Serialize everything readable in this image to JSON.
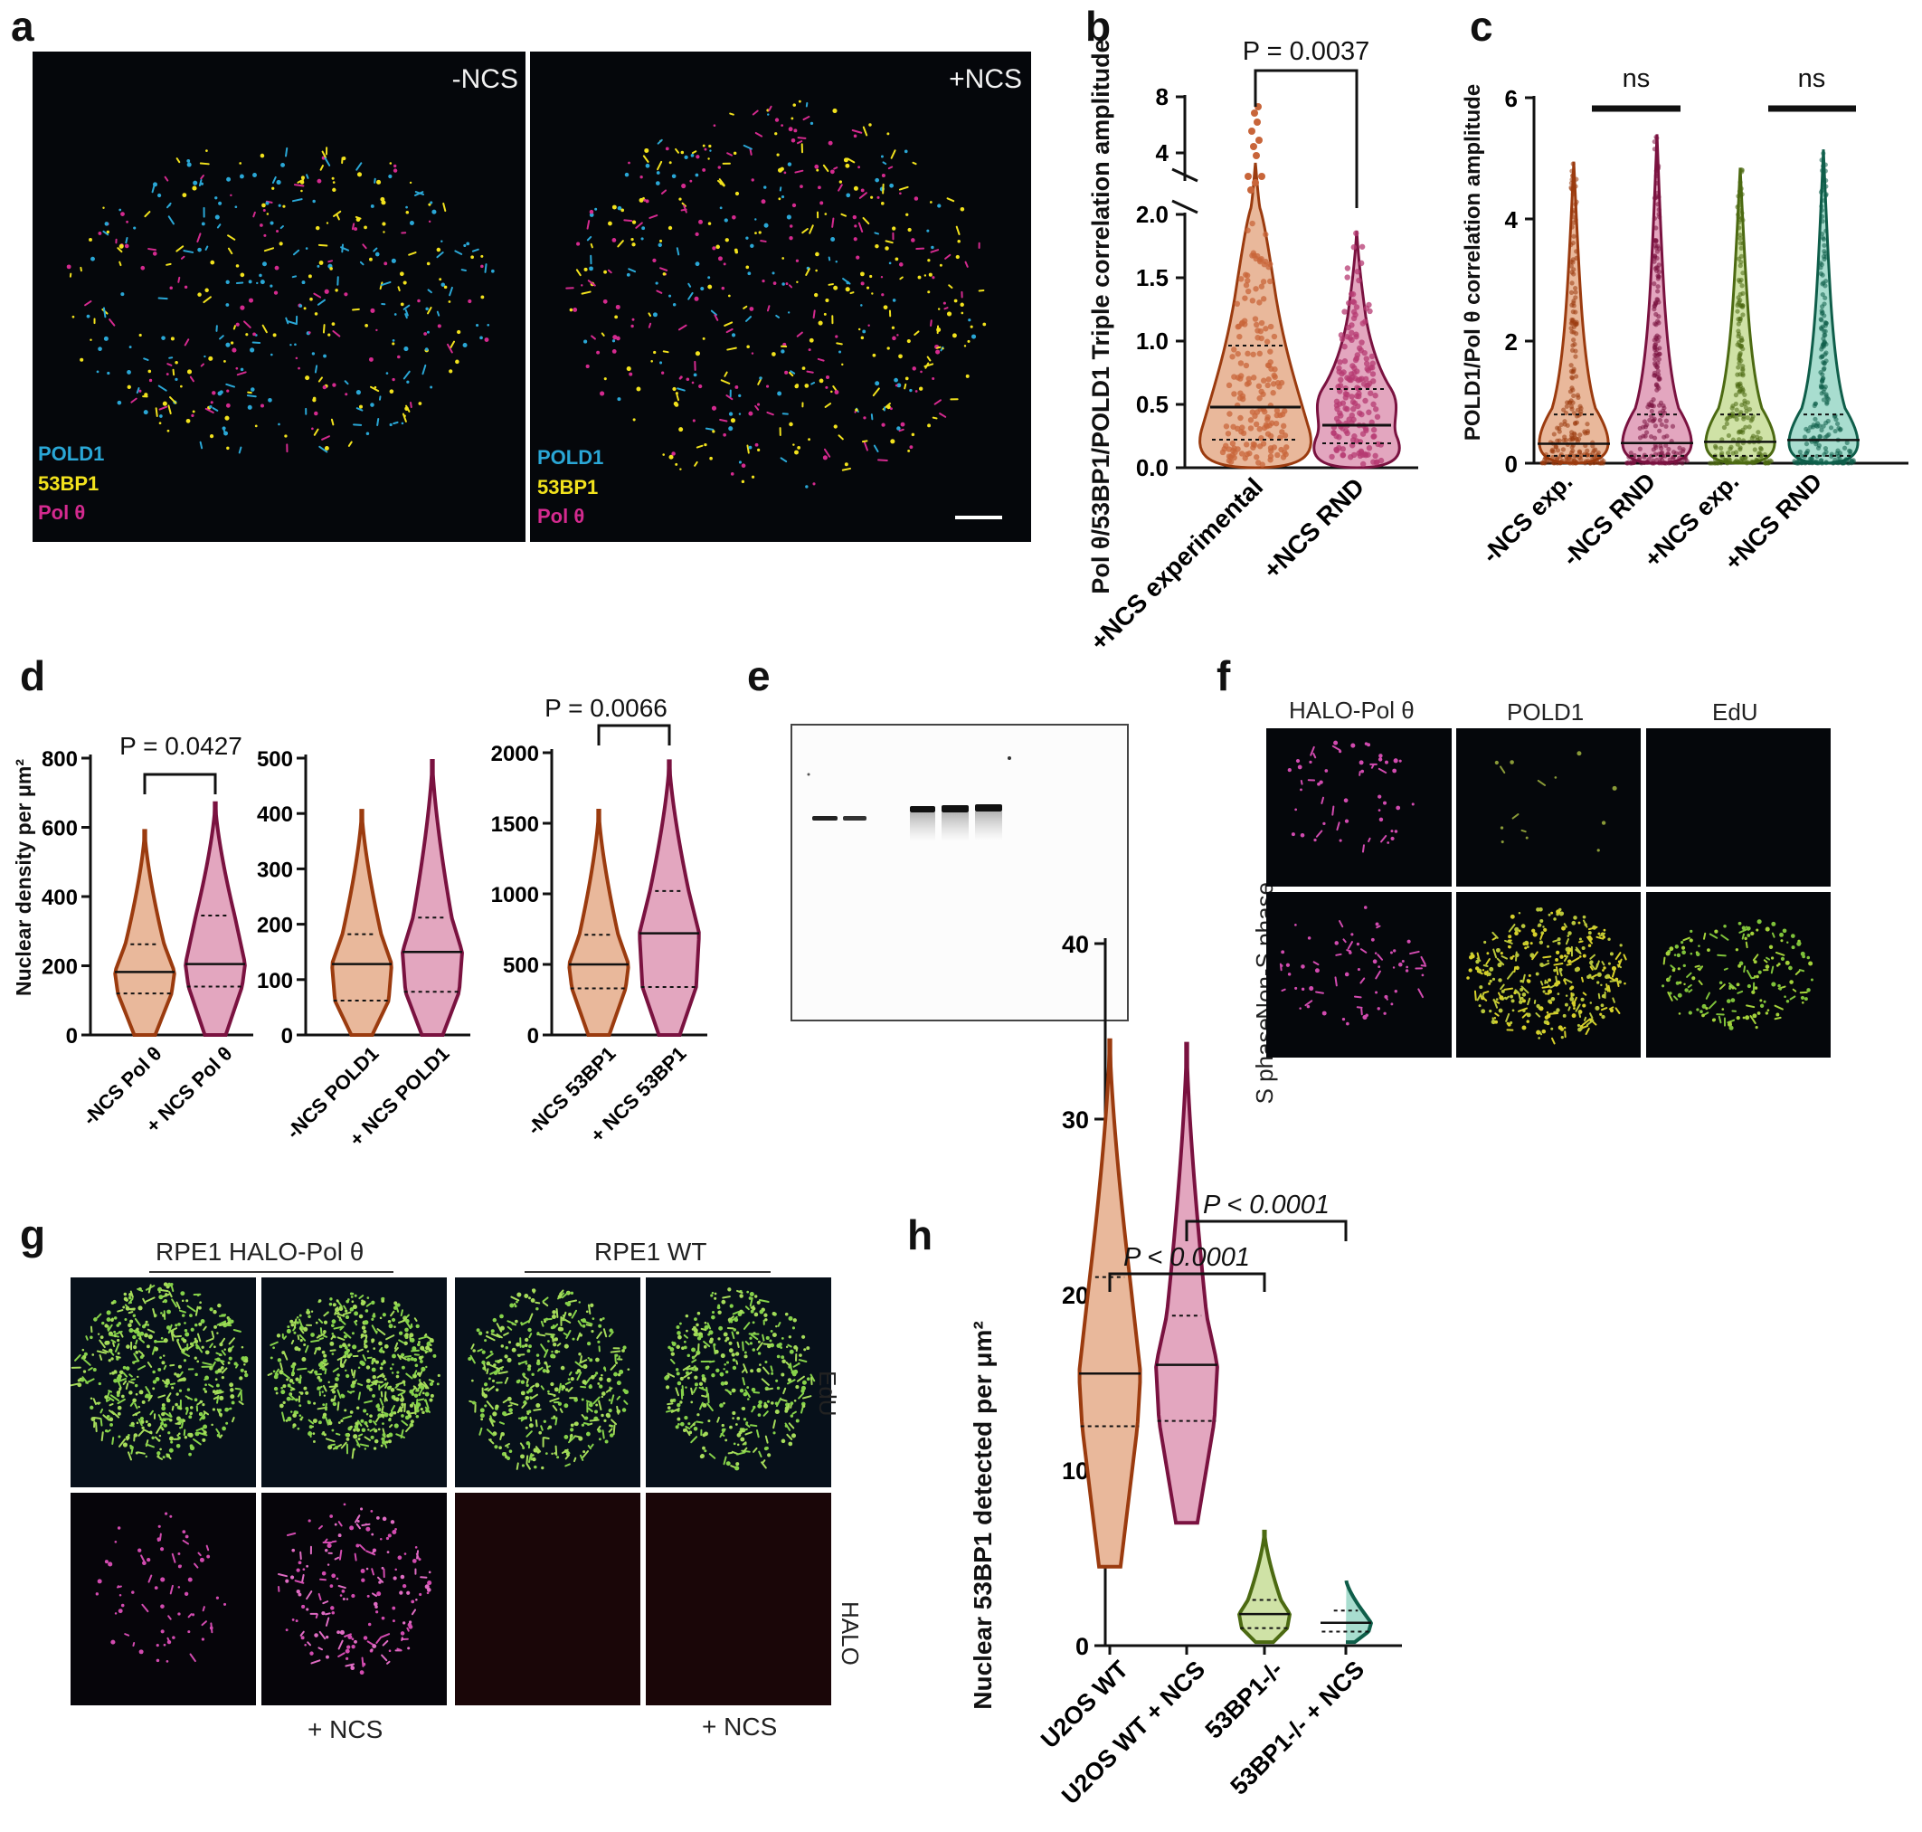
{
  "panels": {
    "a": "a",
    "b": "b",
    "c": "c",
    "d": "d",
    "e": "e",
    "f": "f",
    "g": "g",
    "h": "h"
  },
  "panel_a": {
    "left_condition": "-NCS",
    "right_condition": "+NCS",
    "channels": [
      {
        "name": "POLD1",
        "color": "#2aa7d6"
      },
      {
        "name": "53BP1",
        "color": "#f2e21d"
      },
      {
        "name": "Pol θ",
        "color": "#d42a8f"
      }
    ]
  },
  "panel_f": {
    "columns": [
      "HALO-Pol θ",
      "POLD1",
      "EdU"
    ],
    "rows": [
      "Non-S phase",
      "S phase"
    ]
  },
  "panel_g": {
    "group_left": "RPE1 HALO-Pol θ",
    "group_right": "RPE1 WT",
    "row_labels": [
      "EdU",
      "HALO"
    ],
    "bottom_labels": [
      "+ NCS",
      "+ NCS"
    ]
  },
  "colors": {
    "orange_fill": "#e9b89b",
    "orange_line": "#9b3b0f",
    "purple_fill": "#e3a6bf",
    "purple_line": "#7a1240",
    "green_fill": "#cfe2a6",
    "green_line": "#4c6a12",
    "teal_fill": "#a8ddcf",
    "teal_line": "#0f5e4a"
  },
  "chart_data": [
    {
      "panel": "b",
      "type": "violin",
      "ylabel": "Pol θ/53BP1/POLD1 Triple correlation amplitude",
      "y_ticks_lower": [
        "0.0",
        "0.5",
        "1.0",
        "1.5",
        "2.0"
      ],
      "y_ticks_upper": [
        "4",
        "8"
      ],
      "categories": [
        "+NCS experimental",
        "+NCS RND"
      ],
      "medians": [
        0.48,
        0.33
      ],
      "quartiles": [
        [
          0.22,
          0.95
        ],
        [
          0.2,
          0.62
        ]
      ],
      "max": [
        6.9,
        1.88
      ],
      "significance": [
        {
          "pair": [
            0,
            1
          ],
          "label": "P = 0.0037"
        }
      ]
    },
    {
      "panel": "c",
      "type": "violin",
      "ylabel": "POLD1/Pol θ correlation amplitude",
      "y_ticks": [
        "0",
        "2",
        "4",
        "6"
      ],
      "ylim": [
        0,
        6
      ],
      "categories": [
        "-NCS exp.",
        "-NCS RND",
        "+NCS exp.",
        "+NCS RND"
      ],
      "medians": [
        0.32,
        0.33,
        0.35,
        0.38
      ],
      "max": [
        4.95,
        5.4,
        4.85,
        5.15
      ],
      "significance": [
        {
          "pair": [
            0,
            1
          ],
          "label": "ns"
        },
        {
          "pair": [
            2,
            3
          ],
          "label": "ns"
        }
      ]
    },
    {
      "panel": "d",
      "type": "violin",
      "ylabel": "Nuclear density per μm²",
      "subplots": [
        {
          "y_ticks": [
            "0",
            "200",
            "400",
            "600",
            "800"
          ],
          "ylim": [
            0,
            800
          ],
          "categories": [
            "-NCS Pol θ",
            "+ NCS Pol θ"
          ],
          "medians": [
            182,
            205
          ],
          "quartiles": [
            [
              120,
              262
            ],
            [
              140,
              345
            ]
          ],
          "range": [
            [
              0,
              590
            ],
            [
              0,
              670
            ]
          ],
          "significance": "P = 0.0427"
        },
        {
          "y_ticks": [
            "0",
            "100",
            "200",
            "300",
            "400",
            "500"
          ],
          "ylim": [
            0,
            500
          ],
          "categories": [
            "-NCS POLD1",
            "+ NCS POLD1"
          ],
          "medians": [
            128,
            150
          ],
          "quartiles": [
            [
              62,
              182
            ],
            [
              78,
              212
            ]
          ],
          "range": [
            [
              0,
              405
            ],
            [
              0,
              495
            ]
          ]
        },
        {
          "y_ticks": [
            "0",
            "500",
            "1000",
            "1500",
            "2000"
          ],
          "ylim": [
            0,
            2000
          ],
          "categories": [
            "-NCS 53BP1",
            "+ NCS 53BP1"
          ],
          "medians": [
            500,
            720
          ],
          "quartiles": [
            [
              330,
              710
            ],
            [
              340,
              1020
            ]
          ],
          "range": [
            [
              0,
              1590
            ],
            [
              0,
              1940
            ]
          ],
          "significance": "P = 0.0066"
        }
      ]
    },
    {
      "panel": "h",
      "type": "violin",
      "ylabel": "Nuclear 53BP1 detected per μm²",
      "y_ticks": [
        "0",
        "10",
        "20",
        "30",
        "40"
      ],
      "ylim": [
        0,
        40
      ],
      "categories": [
        "U2OS WT",
        "U2OS WT + NCS",
        "53BP1-/-",
        "53BP1-/- + NCS"
      ],
      "medians": [
        15.5,
        16,
        1.8,
        1.3
      ],
      "quartiles": [
        [
          12.5,
          21
        ],
        [
          12.8,
          18.8
        ],
        [
          1.0,
          2.6
        ],
        [
          0.8,
          2.0
        ]
      ],
      "range": [
        [
          4.5,
          34.5
        ],
        [
          7,
          34.3
        ],
        [
          0.2,
          6.5
        ],
        [
          0.2,
          3.8
        ]
      ],
      "significance": [
        {
          "pair": [
            0,
            2
          ],
          "label": "P < 0.0001"
        },
        {
          "pair": [
            1,
            3
          ],
          "label": "P < 0.0001"
        }
      ]
    }
  ]
}
